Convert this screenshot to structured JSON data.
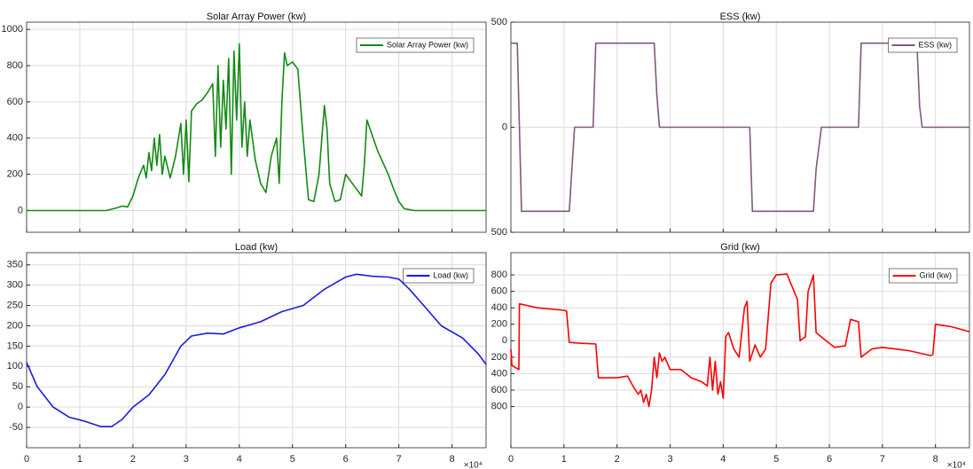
{
  "chart_data": [
    {
      "type": "line",
      "title": "Solar Array Power (kw)",
      "x": [
        0,
        1.5,
        1.7,
        1.8,
        1.9,
        2.0,
        2.1,
        2.2,
        2.25,
        2.3,
        2.35,
        2.4,
        2.45,
        2.5,
        2.55,
        2.6,
        2.7,
        2.8,
        2.9,
        2.95,
        3.0,
        3.05,
        3.1,
        3.2,
        3.3,
        3.4,
        3.5,
        3.55,
        3.6,
        3.65,
        3.7,
        3.75,
        3.8,
        3.85,
        3.9,
        3.95,
        4.0,
        4.05,
        4.1,
        4.15,
        4.2,
        4.3,
        4.4,
        4.5,
        4.6,
        4.7,
        4.75,
        4.8,
        4.85,
        4.9,
        5.0,
        5.1,
        5.2,
        5.3,
        5.4,
        5.5,
        5.6,
        5.65,
        5.7,
        5.8,
        5.9,
        6.0,
        6.1,
        6.3,
        6.35,
        6.4,
        6.6,
        6.8,
        6.9,
        7.0,
        7.1,
        7.3,
        8.64
      ],
      "series": [
        {
          "name": "Solar Array Power (kw)",
          "color": "#138a13",
          "values": [
            0,
            0,
            15,
            25,
            20,
            80,
            180,
            250,
            180,
            320,
            220,
            400,
            250,
            420,
            200,
            300,
            180,
            300,
            480,
            200,
            500,
            160,
            550,
            590,
            610,
            650,
            700,
            300,
            800,
            350,
            720,
            450,
            840,
            200,
            880,
            500,
            920,
            350,
            600,
            300,
            500,
            280,
            150,
            100,
            300,
            400,
            150,
            600,
            870,
            800,
            820,
            780,
            400,
            60,
            50,
            200,
            580,
            450,
            150,
            50,
            60,
            200,
            160,
            80,
            250,
            500,
            330,
            200,
            120,
            50,
            10,
            0,
            0
          ]
        }
      ],
      "xlim": [
        0,
        8.64
      ],
      "xticks": [
        0,
        1,
        2,
        3,
        4,
        5,
        6,
        7,
        8
      ],
      "xtick_labels": false,
      "ylim": [
        -120,
        1040
      ],
      "yticks": [
        0,
        200,
        400,
        600,
        800,
        1000
      ],
      "grid": true,
      "legend": "upper right"
    },
    {
      "type": "line",
      "title": "ESS (kw)",
      "x": [
        0,
        0.12,
        0.2,
        1.1,
        1.2,
        1.55,
        1.6,
        2.7,
        2.75,
        2.8,
        4.5,
        4.55,
        5.7,
        5.75,
        5.85,
        6.55,
        6.6,
        7.65,
        7.7,
        7.75,
        8.64
      ],
      "series": [
        {
          "name": "ESS (kw)",
          "color": "#7e5a7e",
          "values": [
            400,
            400,
            -400,
            -400,
            0,
            0,
            400,
            400,
            150,
            0,
            0,
            -400,
            -400,
            -200,
            0,
            0,
            400,
            400,
            100,
            0,
            0
          ]
        }
      ],
      "xlim": [
        0,
        8.64
      ],
      "xticks": [
        0,
        1,
        2,
        3,
        4,
        5,
        6,
        7,
        8
      ],
      "xtick_labels": false,
      "ylim": [
        -500,
        500
      ],
      "yticks": [
        {
          "value": -500,
          "label": "500"
        },
        0,
        500
      ],
      "grid": true,
      "legend": "upper right"
    },
    {
      "type": "line",
      "title": "Load (kw)",
      "x": [
        0,
        0.2,
        0.5,
        0.8,
        1.1,
        1.4,
        1.6,
        1.8,
        2.0,
        2.3,
        2.6,
        2.9,
        3.1,
        3.4,
        3.7,
        4.0,
        4.4,
        4.8,
        5.2,
        5.6,
        6.0,
        6.2,
        6.5,
        6.8,
        7.0,
        7.2,
        7.5,
        7.8,
        8.2,
        8.5,
        8.64
      ],
      "series": [
        {
          "name": "Load (kw)",
          "color": "#1a1aeb",
          "values": [
            110,
            50,
            0,
            -25,
            -35,
            -48,
            -48,
            -30,
            0,
            30,
            80,
            150,
            175,
            182,
            180,
            195,
            210,
            235,
            250,
            290,
            320,
            327,
            322,
            320,
            315,
            290,
            245,
            200,
            170,
            130,
            105
          ]
        }
      ],
      "xlim": [
        0,
        8.64
      ],
      "xticks": [
        0,
        1,
        2,
        3,
        4,
        5,
        6,
        7,
        8
      ],
      "xtick_labels": true,
      "x_exponent": "×10⁴",
      "ylim": [
        -100,
        380
      ],
      "yticks": [
        -50,
        0,
        50,
        100,
        150,
        200,
        250,
        300,
        350
      ],
      "grid": true,
      "legend": "upper right"
    },
    {
      "type": "line",
      "title": "Grid (kw)",
      "x": [
        0,
        0.02,
        0.15,
        0.16,
        0.5,
        1.0,
        1.05,
        1.1,
        1.3,
        1.6,
        1.65,
        2.0,
        2.2,
        2.3,
        2.4,
        2.45,
        2.5,
        2.55,
        2.6,
        2.65,
        2.7,
        2.75,
        2.8,
        2.85,
        2.9,
        3.0,
        3.2,
        3.4,
        3.6,
        3.7,
        3.75,
        3.8,
        3.85,
        3.9,
        3.95,
        4.0,
        4.05,
        4.1,
        4.2,
        4.3,
        4.4,
        4.45,
        4.5,
        4.6,
        4.7,
        4.8,
        4.9,
        5.0,
        5.2,
        5.4,
        5.45,
        5.55,
        5.6,
        5.7,
        5.75,
        5.9,
        6.1,
        6.3,
        6.4,
        6.55,
        6.6,
        6.8,
        7.0,
        7.5,
        7.9,
        7.95,
        8.0,
        8.3,
        8.64
      ],
      "series": [
        {
          "name": "Grid (kw)",
          "color": "#ff0000",
          "values": [
            -100,
            -300,
            -350,
            450,
            400,
            370,
            360,
            -20,
            -30,
            -40,
            -450,
            -450,
            -430,
            -550,
            -650,
            -600,
            -750,
            -650,
            -800,
            -600,
            -200,
            -450,
            -150,
            -250,
            -200,
            -350,
            -350,
            -450,
            -500,
            -550,
            -200,
            -600,
            -250,
            -650,
            -500,
            -700,
            50,
            100,
            -100,
            -200,
            400,
            480,
            -250,
            -50,
            -200,
            -100,
            700,
            800,
            810,
            500,
            0,
            50,
            600,
            800,
            100,
            20,
            -80,
            -60,
            260,
            230,
            -200,
            -100,
            -80,
            -120,
            -180,
            -170,
            200,
            170,
            110
          ]
        }
      ],
      "xlim": [
        0,
        8.64
      ],
      "xticks": [
        0,
        1,
        2,
        3,
        4,
        5,
        6,
        7,
        8
      ],
      "xtick_labels": true,
      "x_exponent": "×10⁴",
      "ylim": [
        -1300,
        1070
      ],
      "yticks": [
        {
          "value": -800,
          "label": "800"
        },
        {
          "value": -600,
          "label": "600"
        },
        {
          "value": -400,
          "label": "400"
        },
        {
          "value": -200,
          "label": "200"
        },
        0,
        200,
        400,
        600,
        800
      ],
      "grid": true,
      "legend": "upper right"
    }
  ]
}
